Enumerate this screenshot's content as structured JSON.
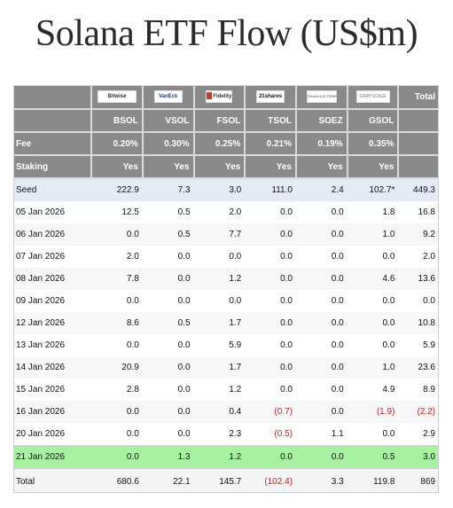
{
  "title": "Solana ETF Flow (US$m)",
  "colors": {
    "header_bg": "#8a8a8a",
    "seed_bg": "#e4eaf6",
    "highlight_bg": "#a6f2a0",
    "negative": "#cc1f1f"
  },
  "issuers": [
    "Bitwise",
    "VanEck",
    "Fidelity",
    "21shares",
    "FRANKLIN TEMPLETON",
    "GRAYSCALE"
  ],
  "total_label": "Total",
  "codes": [
    "BSOL",
    "VSOL",
    "FSOL",
    "TSOL",
    "SOEZ",
    "GSOL"
  ],
  "fee_label": "Fee",
  "fees": [
    "0.20%",
    "0.30%",
    "0.25%",
    "0.21%",
    "0.19%",
    "0.35%"
  ],
  "staking_label": "Staking",
  "staking": [
    "Yes",
    "Yes",
    "Yes",
    "Yes",
    "Yes",
    "Yes"
  ],
  "rows": [
    {
      "label": "Seed",
      "values": [
        "222.9",
        "7.3",
        "3.0",
        "111.0",
        "2.4",
        "102.7*"
      ],
      "total": "449.3"
    },
    {
      "label": "05 Jan 2026",
      "values": [
        "12.5",
        "0.5",
        "2.0",
        "0.0",
        "0.0",
        "1.8"
      ],
      "total": "16.8"
    },
    {
      "label": "06 Jan 2026",
      "values": [
        "0.0",
        "0.5",
        "7.7",
        "0.0",
        "0.0",
        "1.0"
      ],
      "total": "9.2"
    },
    {
      "label": "07 Jan 2026",
      "values": [
        "2.0",
        "0.0",
        "0.0",
        "0.0",
        "0.0",
        "0.0"
      ],
      "total": "2.0"
    },
    {
      "label": "08 Jan 2026",
      "values": [
        "7.8",
        "0.0",
        "1.2",
        "0.0",
        "0.0",
        "4.6"
      ],
      "total": "13.6"
    },
    {
      "label": "09 Jan 2026",
      "values": [
        "0.0",
        "0.0",
        "0.0",
        "0.0",
        "0.0",
        "0.0"
      ],
      "total": "0.0"
    },
    {
      "label": "12 Jan 2026",
      "values": [
        "8.6",
        "0.5",
        "1.7",
        "0.0",
        "0.0",
        "0.0"
      ],
      "total": "10.8"
    },
    {
      "label": "13 Jan 2026",
      "values": [
        "0.0",
        "0.0",
        "5.9",
        "0.0",
        "0.0",
        "0.0"
      ],
      "total": "5.9"
    },
    {
      "label": "14 Jan 2026",
      "values": [
        "20.9",
        "0.0",
        "1.7",
        "0.0",
        "0.0",
        "1.0"
      ],
      "total": "23.6"
    },
    {
      "label": "15 Jan 2026",
      "values": [
        "2.8",
        "0.0",
        "1.2",
        "0.0",
        "0.0",
        "4.9"
      ],
      "total": "8.9"
    },
    {
      "label": "16 Jan 2026",
      "values": [
        "0.0",
        "0.0",
        "0.4",
        "(0.7)",
        "0.0",
        "(1.9)"
      ],
      "total": "(2.2)"
    },
    {
      "label": "20 Jan 2026",
      "values": [
        "0.0",
        "0.0",
        "2.3",
        "(0.5)",
        "1.1",
        "0.0"
      ],
      "total": "2.9"
    },
    {
      "label": "21 Jan 2026",
      "values": [
        "0.0",
        "1.3",
        "1.2",
        "0.0",
        "0.0",
        "0.5"
      ],
      "total": "3.0"
    }
  ],
  "totals": {
    "label": "Total",
    "values": [
      "680.6",
      "22.1",
      "145.7",
      "(102.4)",
      "3.3",
      "119.8"
    ],
    "total": "869"
  }
}
